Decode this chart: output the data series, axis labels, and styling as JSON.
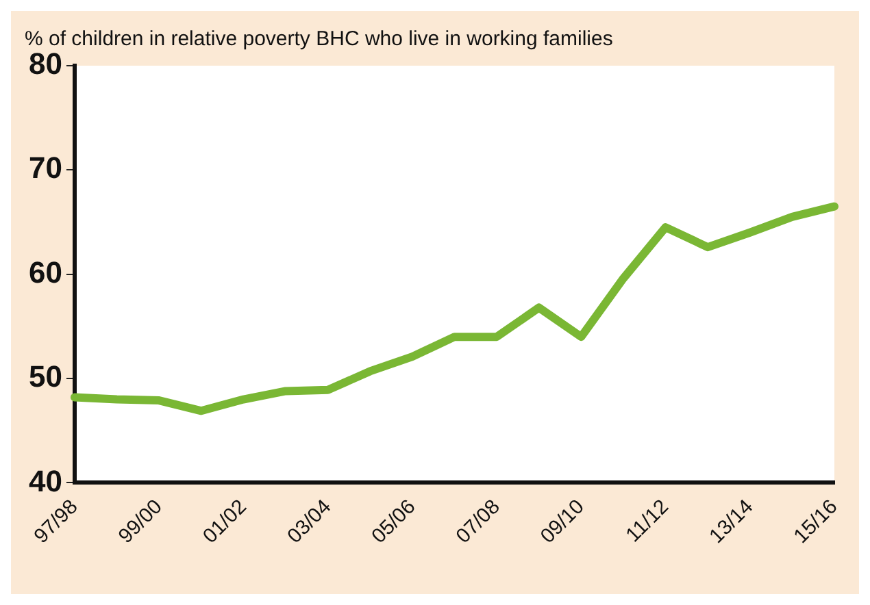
{
  "chart_data": {
    "type": "line",
    "title": "% of children in relative poverty BHC who live in working families",
    "categories": [
      "97/98",
      null,
      "99/00",
      null,
      "01/02",
      null,
      "03/04",
      null,
      "05/06",
      null,
      "07/08",
      null,
      "09/10",
      null,
      "11/12",
      null,
      "13/14",
      null,
      "15/16"
    ],
    "series": [
      {
        "color": "#7ab734",
        "values": [
          48.2,
          48.0,
          47.9,
          46.9,
          48.0,
          48.8,
          48.9,
          50.7,
          52.1,
          54.0,
          54.0,
          56.8,
          54.0,
          59.6,
          64.5,
          62.6,
          64.0,
          65.5,
          66.5
        ]
      }
    ],
    "ylim": [
      40,
      80
    ],
    "yticks": [
      40,
      50,
      60,
      70,
      80
    ],
    "grid": false,
    "legend": false,
    "marker": "none",
    "line_style": "solid"
  }
}
